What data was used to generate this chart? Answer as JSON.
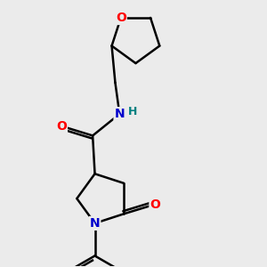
{
  "background_color": "#ebebeb",
  "bond_color": "#000000",
  "bond_width": 1.8,
  "atom_colors": {
    "O": "#ff0000",
    "N": "#0000cc",
    "H": "#008080",
    "C": "#000000"
  },
  "font_size": 10,
  "bold": true
}
